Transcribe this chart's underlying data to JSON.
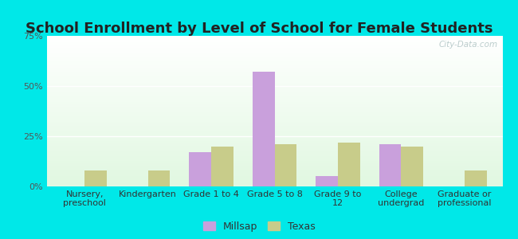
{
  "title": "School Enrollment by Level of School for Female Students",
  "categories": [
    "Nursery,\npreschool",
    "Kindergarten",
    "Grade 1 to 4",
    "Grade 5 to 8",
    "Grade 9 to\n12",
    "College\nundergrad",
    "Graduate or\nprofessional"
  ],
  "millsap": [
    0,
    0,
    17,
    57,
    5,
    21,
    0
  ],
  "texas": [
    8,
    8,
    20,
    21,
    22,
    20,
    8
  ],
  "millsap_color": "#c9a0dc",
  "texas_color": "#c8cc8a",
  "ylim": [
    0,
    75
  ],
  "yticks": [
    0,
    25,
    50,
    75
  ],
  "ytick_labels": [
    "0%",
    "25%",
    "50%",
    "75%"
  ],
  "background_outer": "#00e8e8",
  "grid_color": "#ffffff",
  "title_fontsize": 13,
  "tick_fontsize": 8,
  "legend_labels": [
    "Millsap",
    "Texas"
  ],
  "bar_width": 0.35,
  "watermark": "City-Data.com"
}
